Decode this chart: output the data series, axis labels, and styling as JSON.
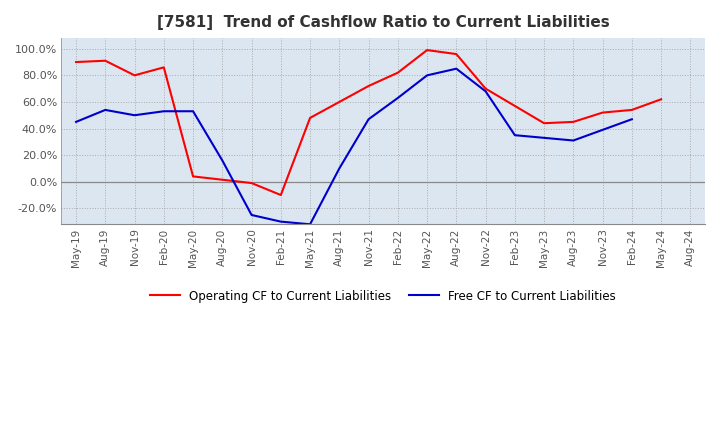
{
  "title": "[7581]  Trend of Cashflow Ratio to Current Liabilities",
  "x_labels": [
    "May-19",
    "Aug-19",
    "Nov-19",
    "Feb-20",
    "May-20",
    "Aug-20",
    "Nov-20",
    "Feb-21",
    "May-21",
    "Aug-21",
    "Nov-21",
    "Feb-22",
    "May-22",
    "Aug-22",
    "Nov-22",
    "Feb-23",
    "May-23",
    "Aug-23",
    "Nov-23",
    "Feb-24",
    "May-24",
    "Aug-24"
  ],
  "operating_cf": [
    0.9,
    0.91,
    0.8,
    0.86,
    0.04,
    null,
    -0.01,
    -0.1,
    0.48,
    0.6,
    0.72,
    0.82,
    0.99,
    0.96,
    0.7,
    null,
    0.44,
    0.45,
    0.52,
    0.54,
    0.62,
    null
  ],
  "free_cf": [
    0.45,
    0.54,
    0.5,
    0.53,
    0.53,
    0.16,
    -0.25,
    -0.3,
    -0.32,
    0.1,
    0.47,
    0.63,
    0.8,
    0.85,
    0.68,
    0.35,
    0.33,
    0.31,
    0.39,
    0.47,
    null,
    null
  ],
  "operating_cf_color": "#ff0000",
  "free_cf_color": "#0000cd",
  "ylim": [
    -0.32,
    1.08
  ],
  "yticks": [
    -0.2,
    0.0,
    0.2,
    0.4,
    0.6,
    0.8,
    1.0
  ],
  "ytick_labels": [
    "-20.0%",
    "0.0%",
    "20.0%",
    "40.0%",
    "60.0%",
    "80.0%",
    "100.0%"
  ],
  "grid_color": "#aaaaaa",
  "background_color": "#dce6f1",
  "plot_bg_color": "#dce6f1",
  "legend_operating": "Operating CF to Current Liabilities",
  "legend_free": "Free CF to Current Liabilities"
}
